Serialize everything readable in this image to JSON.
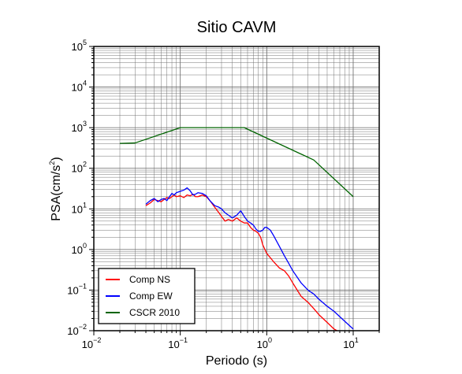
{
  "chart_data": {
    "type": "line",
    "title": "Sitio CAVM",
    "xlabel": "Periodo (s)",
    "ylabel": {
      "prefix": "PSA(cm/s",
      "sup": "2",
      "suffix": ")"
    },
    "x_scale": "log",
    "y_scale": "log",
    "xlim": [
      0.01,
      20
    ],
    "ylim": [
      0.01,
      100000
    ],
    "grid": true,
    "legend_position": "bottom-left",
    "x_ticks": [
      {
        "value": 0.01,
        "base": "10",
        "exp": "−2"
      },
      {
        "value": 0.1,
        "base": "10",
        "exp": "−1"
      },
      {
        "value": 1,
        "base": "10",
        "exp": "0"
      },
      {
        "value": 10,
        "base": "10",
        "exp": "1"
      }
    ],
    "y_ticks": [
      {
        "value": 0.01,
        "base": "10",
        "exp": "−2"
      },
      {
        "value": 0.1,
        "base": "10",
        "exp": "−1"
      },
      {
        "value": 1,
        "base": "10",
        "exp": "0"
      },
      {
        "value": 10,
        "base": "10",
        "exp": "1"
      },
      {
        "value": 100,
        "base": "10",
        "exp": "2"
      },
      {
        "value": 1000,
        "base": "10",
        "exp": "3"
      },
      {
        "value": 10000,
        "base": "10",
        "exp": "4"
      },
      {
        "value": 100000,
        "base": "10",
        "exp": "5"
      }
    ],
    "series": [
      {
        "name": "Comp NS",
        "color": "#ff0000",
        "points": [
          [
            0.04,
            12
          ],
          [
            0.045,
            14
          ],
          [
            0.05,
            17
          ],
          [
            0.055,
            16
          ],
          [
            0.06,
            15
          ],
          [
            0.065,
            17
          ],
          [
            0.07,
            19
          ],
          [
            0.075,
            18
          ],
          [
            0.08,
            20
          ],
          [
            0.085,
            22
          ],
          [
            0.09,
            20
          ],
          [
            0.1,
            21
          ],
          [
            0.11,
            19
          ],
          [
            0.12,
            22
          ],
          [
            0.13,
            21
          ],
          [
            0.14,
            23
          ],
          [
            0.15,
            20
          ],
          [
            0.16,
            20
          ],
          [
            0.18,
            22
          ],
          [
            0.2,
            20
          ],
          [
            0.22,
            16
          ],
          [
            0.25,
            11
          ],
          [
            0.28,
            8
          ],
          [
            0.3,
            6.5
          ],
          [
            0.33,
            5
          ],
          [
            0.36,
            5.5
          ],
          [
            0.4,
            5
          ],
          [
            0.45,
            6
          ],
          [
            0.5,
            5
          ],
          [
            0.55,
            4.5
          ],
          [
            0.6,
            4.5
          ],
          [
            0.65,
            3.5
          ],
          [
            0.7,
            3
          ],
          [
            0.75,
            2.8
          ],
          [
            0.8,
            2.5
          ],
          [
            0.85,
            2
          ],
          [
            0.9,
            1.3
          ],
          [
            1,
            0.8
          ],
          [
            1.2,
            0.5
          ],
          [
            1.4,
            0.35
          ],
          [
            1.6,
            0.3
          ],
          [
            1.8,
            0.22
          ],
          [
            2,
            0.15
          ],
          [
            2.5,
            0.07
          ],
          [
            3,
            0.05
          ],
          [
            3.5,
            0.035
          ],
          [
            4,
            0.025
          ],
          [
            5,
            0.016
          ],
          [
            6,
            0.011
          ],
          [
            6.5,
            0.01
          ]
        ]
      },
      {
        "name": "Comp EW",
        "color": "#0000ff",
        "points": [
          [
            0.04,
            13
          ],
          [
            0.045,
            16
          ],
          [
            0.05,
            18
          ],
          [
            0.055,
            15
          ],
          [
            0.06,
            17
          ],
          [
            0.065,
            18
          ],
          [
            0.07,
            16
          ],
          [
            0.075,
            20
          ],
          [
            0.08,
            24
          ],
          [
            0.085,
            22
          ],
          [
            0.09,
            25
          ],
          [
            0.1,
            27
          ],
          [
            0.11,
            29
          ],
          [
            0.12,
            33
          ],
          [
            0.13,
            28
          ],
          [
            0.14,
            22
          ],
          [
            0.15,
            23
          ],
          [
            0.16,
            25
          ],
          [
            0.18,
            24
          ],
          [
            0.2,
            21
          ],
          [
            0.22,
            16
          ],
          [
            0.25,
            12
          ],
          [
            0.28,
            11
          ],
          [
            0.3,
            10
          ],
          [
            0.33,
            8
          ],
          [
            0.36,
            7
          ],
          [
            0.4,
            6
          ],
          [
            0.45,
            7
          ],
          [
            0.5,
            9
          ],
          [
            0.55,
            6.5
          ],
          [
            0.6,
            5
          ],
          [
            0.65,
            4.5
          ],
          [
            0.7,
            4
          ],
          [
            0.75,
            3.2
          ],
          [
            0.8,
            2.8
          ],
          [
            0.85,
            2.8
          ],
          [
            0.9,
            3
          ],
          [
            0.95,
            3.5
          ],
          [
            1,
            3.5
          ],
          [
            1.1,
            3
          ],
          [
            1.2,
            2.2
          ],
          [
            1.4,
            1.2
          ],
          [
            1.6,
            0.7
          ],
          [
            1.8,
            0.45
          ],
          [
            2,
            0.3
          ],
          [
            2.5,
            0.15
          ],
          [
            3,
            0.1
          ],
          [
            3.5,
            0.08
          ],
          [
            4,
            0.06
          ],
          [
            5,
            0.04
          ],
          [
            6,
            0.03
          ],
          [
            8,
            0.017
          ],
          [
            10,
            0.011
          ]
        ]
      },
      {
        "name": "CSCR 2010",
        "color": "#006400",
        "points": [
          [
            0.02,
            410
          ],
          [
            0.03,
            420
          ],
          [
            0.1,
            1000
          ],
          [
            0.55,
            1000
          ],
          [
            3.5,
            160
          ],
          [
            10,
            20
          ]
        ]
      }
    ]
  }
}
